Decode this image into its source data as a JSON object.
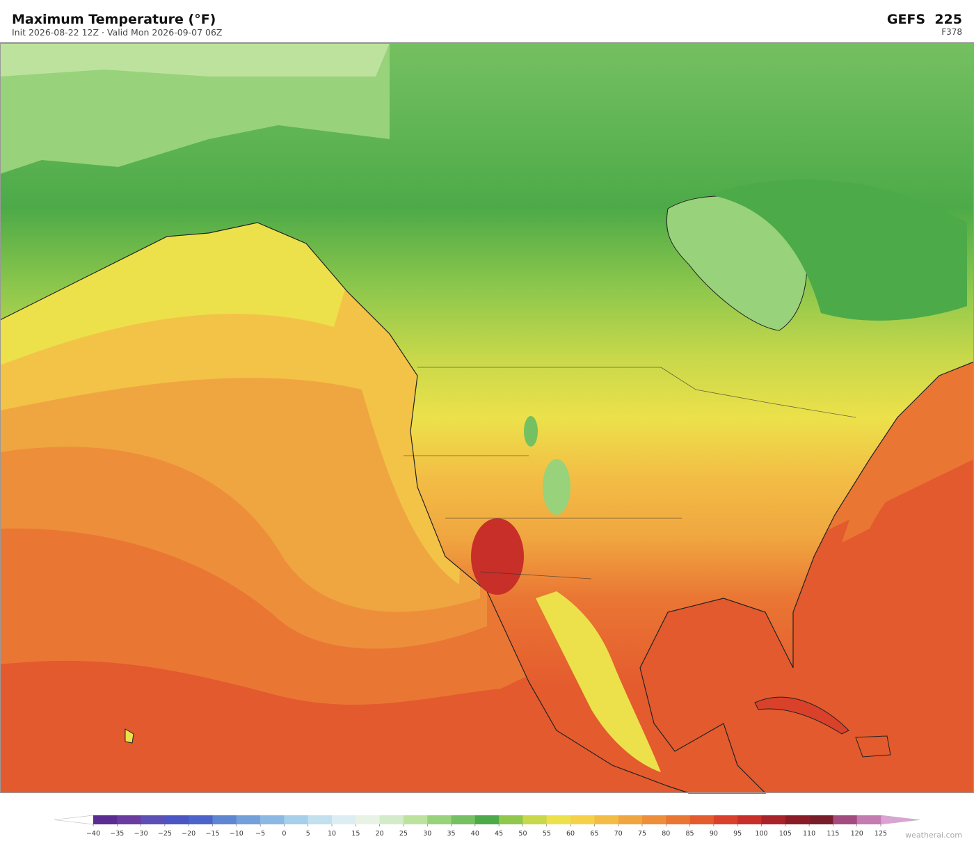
{
  "header": {
    "title": "Maximum Temperature  (°F)",
    "subtitle": "Init 2026-08-22 12Z  ·  Valid Mon 2026-09-07 06Z",
    "model": "GEFS  225",
    "forecast_hour": "F378"
  },
  "colorbar": {
    "ticks": [
      {
        "value": -40,
        "label": "−40"
      },
      {
        "value": -35,
        "label": "−35"
      },
      {
        "value": -30,
        "label": "−30"
      },
      {
        "value": -25,
        "label": "−25"
      },
      {
        "value": -20,
        "label": "−20"
      },
      {
        "value": -15,
        "label": "−15"
      },
      {
        "value": -10,
        "label": "−10"
      },
      {
        "value": -5,
        "label": "−5"
      },
      0,
      5,
      10,
      15,
      20,
      25,
      30,
      35,
      40,
      45,
      50,
      55,
      60,
      65,
      70,
      75,
      80,
      85,
      90,
      95,
      100,
      105,
      110,
      115,
      120,
      125
    ],
    "colors": [
      "#5b2c91",
      "#6a3ca0",
      "#5c4fb5",
      "#4b55c4",
      "#4c63c9",
      "#5e86d1",
      "#74a0da",
      "#8bb9e3",
      "#a6cfe9",
      "#c2e0ee",
      "#dceef3",
      "#e8f3e6",
      "#d3ebc8",
      "#bde29e",
      "#98d27a",
      "#75c061",
      "#4daa48",
      "#8fc84c",
      "#c8d84a",
      "#ece14a",
      "#f5d14a",
      "#f3bd45",
      "#f0a640",
      "#ed8e3b",
      "#ea7634",
      "#e45b2e",
      "#d9412a",
      "#c72f28",
      "#a8232a",
      "#8a1c27",
      "#7a1d2a",
      "#a44c80",
      "#c47cb0"
    ],
    "under_color": "#ffffff",
    "over_color": "#dba3d3"
  },
  "footer": {
    "watermark": "weatherai.com"
  }
}
